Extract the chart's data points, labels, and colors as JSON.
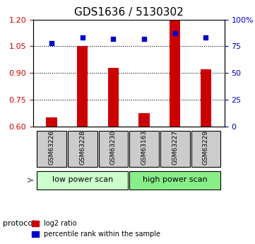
{
  "title": "GDS1636 / 5130302",
  "samples": [
    "GSM63226",
    "GSM63228",
    "GSM63230",
    "GSM63163",
    "GSM63227",
    "GSM63229"
  ],
  "log2_ratio": [
    0.648,
    1.05,
    0.93,
    0.675,
    1.195,
    0.92
  ],
  "percentile_rank": [
    78,
    83,
    82,
    82,
    87,
    83
  ],
  "ylim_left": [
    0.6,
    1.2
  ],
  "ylim_right": [
    0,
    100
  ],
  "yticks_left": [
    0.6,
    0.75,
    0.9,
    1.05,
    1.2
  ],
  "yticks_right": [
    0,
    25,
    50,
    75,
    100
  ],
  "ytick_labels_right": [
    "0",
    "25",
    "50",
    "75",
    "100%"
  ],
  "hlines": [
    0.75,
    0.9,
    1.05
  ],
  "bar_color": "#cc0000",
  "scatter_color": "#0000cc",
  "bar_width": 0.35,
  "protocol_groups": [
    {
      "label": "low power scan",
      "indices": [
        0,
        1,
        2
      ],
      "color": "#ccffcc"
    },
    {
      "label": "high power scan",
      "indices": [
        3,
        4,
        5
      ],
      "color": "#88ee88"
    }
  ],
  "protocol_label": "protocol",
  "sample_box_color": "#cccccc",
  "legend_bar_label": "log2 ratio",
  "legend_scatter_label": "percentile rank within the sample",
  "figsize": [
    3.61,
    3.45
  ],
  "dpi": 100
}
